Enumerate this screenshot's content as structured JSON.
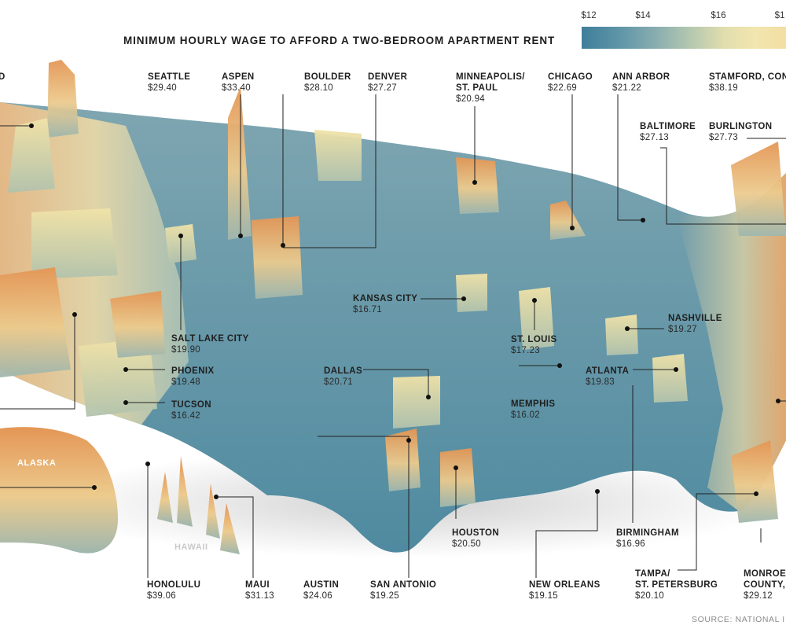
{
  "title": "MINIMUM HOURLY WAGE TO AFFORD A TWO-BEDROOM APARTMENT RENT",
  "legend": {
    "ticks": [
      "$12",
      "$14",
      "$16",
      "$1"
    ],
    "colors": [
      "#3f7e9a",
      "#89adb0",
      "#e3deae",
      "#f3dca0"
    ]
  },
  "cities": {
    "portland_clip": {
      "name": "D",
      "wage": ""
    },
    "seattle": {
      "name": "SEATTLE",
      "wage": "$29.40"
    },
    "aspen": {
      "name": "ASPEN",
      "wage": "$33.40"
    },
    "boulder": {
      "name": "BOULDER",
      "wage": "$28.10"
    },
    "denver": {
      "name": "DENVER",
      "wage": "$27.27"
    },
    "minneapolis": {
      "name": "MINNEAPOLIS/",
      "name2": "ST. PAUL",
      "wage": "$20.94"
    },
    "chicago": {
      "name": "CHICAGO",
      "wage": "$22.69"
    },
    "ann_arbor": {
      "name": "ANN ARBOR",
      "wage": "$21.22"
    },
    "stamford": {
      "name": "STAMFORD, CON",
      "wage": "$38.19"
    },
    "baltimore": {
      "name": "BALTIMORE",
      "wage": "$27.13"
    },
    "burlington": {
      "name": "BURLINGTON",
      "wage": "$27.73"
    },
    "kansas_city": {
      "name": "KANSAS CITY",
      "wage": "$16.71"
    },
    "salt_lake": {
      "name": "SALT LAKE CITY",
      "wage": "$19.90"
    },
    "phoenix": {
      "name": "PHOENIX",
      "wage": "$19.48"
    },
    "tucson": {
      "name": "TUCSON",
      "wage": "$16.42"
    },
    "st_louis": {
      "name": "ST. LOUIS",
      "wage": "$17.23"
    },
    "nashville": {
      "name": "NASHVILLE",
      "wage": "$19.27"
    },
    "dallas": {
      "name": "DALLAS",
      "wage": "$20.71"
    },
    "memphis": {
      "name": "MEMPHIS",
      "wage": "$16.02"
    },
    "atlanta": {
      "name": "ATLANTA",
      "wage": "$19.83"
    },
    "houston": {
      "name": "HOUSTON",
      "wage": "$20.50"
    },
    "birmingham": {
      "name": "BIRMINGHAM",
      "wage": "$16.96"
    },
    "honolulu": {
      "name": "HONOLULU",
      "wage": "$39.06"
    },
    "maui": {
      "name": "MAUI",
      "wage": "$31.13"
    },
    "austin": {
      "name": "AUSTIN",
      "wage": "$24.06"
    },
    "san_antonio": {
      "name": "SAN ANTONIO",
      "wage": "$19.25"
    },
    "new_orleans": {
      "name": "NEW ORLEANS",
      "wage": "$19.15"
    },
    "tampa": {
      "name": "TAMPA/",
      "name2": "ST. PETERSBURG",
      "wage": "$20.10"
    },
    "monroe": {
      "name": "MONROE",
      "name2": "COUNTY, ",
      "wage": "$29.12"
    }
  },
  "regions": {
    "alaska": "ALASKA",
    "hawaii": "HAWAII"
  },
  "source": "SOURCE: NATIONAL I"
}
